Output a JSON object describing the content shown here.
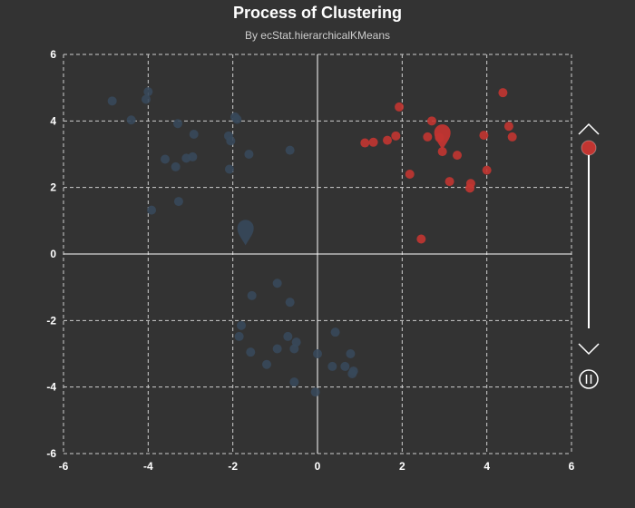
{
  "chart_data": {
    "type": "scatter",
    "title": "Process of Clustering",
    "subtitle": "By ecStat.hierarchicalKMeans",
    "xlim": [
      -6,
      6
    ],
    "ylim": [
      -6,
      6
    ],
    "x_ticks": [
      "-6",
      "-4",
      "-2",
      "0",
      "2",
      "4",
      "6"
    ],
    "y_ticks": [
      "6",
      "4",
      "2",
      "0",
      "-2",
      "-4",
      "-6"
    ],
    "grid": true,
    "colors": {
      "background": "#333333",
      "blue": "#37485a",
      "red": "#c23531",
      "axis": "#ffffff"
    },
    "series": [
      {
        "color": "#c23531",
        "centroid": [
          2.95,
          3.57
        ],
        "points": [
          [
            4.38,
            4.85
          ],
          [
            1.93,
            4.42
          ],
          [
            2.7,
            4.0
          ],
          [
            4.52,
            3.84
          ],
          [
            4.6,
            3.52
          ],
          [
            3.93,
            3.57
          ],
          [
            1.85,
            3.55
          ],
          [
            2.6,
            3.52
          ],
          [
            2.88,
            3.5
          ],
          [
            1.65,
            3.42
          ],
          [
            1.32,
            3.36
          ],
          [
            1.12,
            3.34
          ],
          [
            2.95,
            3.08
          ],
          [
            3.3,
            2.97
          ],
          [
            4.0,
            2.52
          ],
          [
            2.18,
            2.4
          ],
          [
            3.12,
            2.18
          ],
          [
            3.62,
            2.12
          ],
          [
            3.6,
            1.98
          ],
          [
            2.45,
            0.45
          ]
        ]
      },
      {
        "color": "#37485a",
        "centroid": [
          -1.7,
          0.7
        ],
        "points": [
          [
            -4.85,
            4.6
          ],
          [
            -4.0,
            4.88
          ],
          [
            -4.05,
            4.65
          ],
          [
            -4.4,
            4.03
          ],
          [
            -1.95,
            4.12
          ],
          [
            -1.9,
            4.05
          ],
          [
            -3.3,
            3.92
          ],
          [
            -2.92,
            3.6
          ],
          [
            -2.1,
            3.55
          ],
          [
            -2.05,
            3.4
          ],
          [
            -0.65,
            3.12
          ],
          [
            -1.62,
            3.0
          ],
          [
            -3.6,
            2.85
          ],
          [
            -3.1,
            2.88
          ],
          [
            -2.95,
            2.92
          ],
          [
            -3.35,
            2.62
          ],
          [
            -2.08,
            2.55
          ],
          [
            -3.28,
            1.58
          ],
          [
            -3.92,
            1.32
          ],
          [
            -0.95,
            -0.88
          ],
          [
            -1.55,
            -1.25
          ],
          [
            -0.65,
            -1.45
          ],
          [
            -1.8,
            -2.15
          ],
          [
            -0.7,
            -2.48
          ],
          [
            -1.85,
            -2.48
          ],
          [
            -0.5,
            -2.65
          ],
          [
            0.42,
            -2.35
          ],
          [
            -0.55,
            -2.85
          ],
          [
            -0.95,
            -2.85
          ],
          [
            -1.58,
            -2.95
          ],
          [
            -1.2,
            -3.32
          ],
          [
            0.78,
            -3.0
          ],
          [
            0.0,
            -3.0
          ],
          [
            0.35,
            -3.38
          ],
          [
            0.65,
            -3.38
          ],
          [
            0.85,
            -3.52
          ],
          [
            0.82,
            -3.6
          ],
          [
            -0.55,
            -3.85
          ],
          [
            -0.05,
            -4.15
          ]
        ]
      }
    ]
  }
}
